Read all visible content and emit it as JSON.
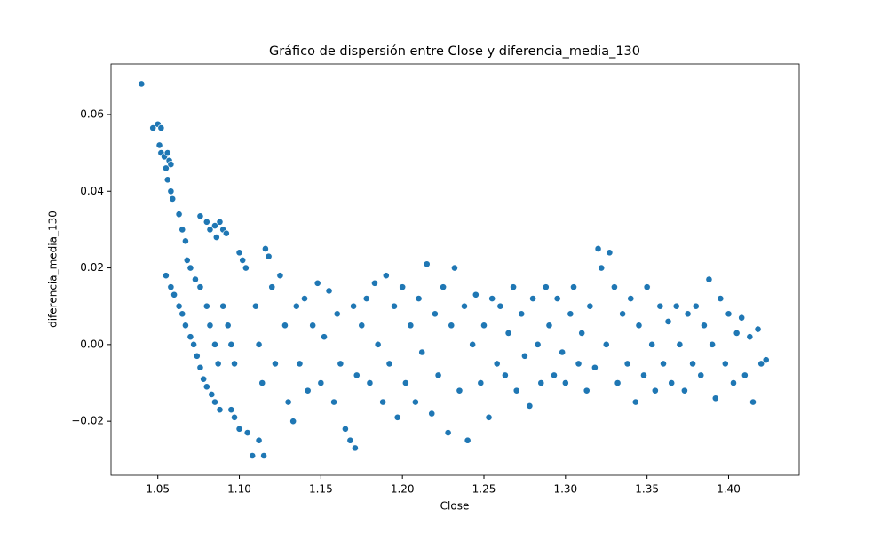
{
  "chart_data": {
    "type": "scatter",
    "title": "Gráfico de dispersión entre Close y diferencia_media_130",
    "x_label": "Close",
    "y_label": "diferencia_media_130",
    "color": "#1f77b4",
    "xlim": [
      1.0213,
      1.4433
    ],
    "ylim": [
      -0.0341,
      0.0732
    ],
    "xticks": [
      1.05,
      {
        "value": 1.1,
        "label": "1.10"
      },
      1.15,
      {
        "value": 1.2,
        "label": "1.20"
      },
      1.25,
      {
        "value": 1.3,
        "label": "1.30"
      },
      1.35,
      {
        "value": 1.4,
        "label": "1.40"
      }
    ],
    "yticks": [
      {
        "value": -0.02,
        "label": "−0.02"
      },
      {
        "value": 0,
        "label": "0.00"
      },
      {
        "value": 0.02,
        "label": "0.02"
      },
      {
        "value": 0.04,
        "label": "0.04"
      },
      {
        "value": 0.06,
        "label": "0.06"
      }
    ],
    "x": [
      1.04,
      1.047,
      1.05,
      1.052,
      1.051,
      1.052,
      1.054,
      1.055,
      1.056,
      1.057,
      1.058,
      1.056,
      1.058,
      1.059,
      1.063,
      1.065,
      1.067,
      1.055,
      1.058,
      1.06,
      1.063,
      1.065,
      1.067,
      1.07,
      1.072,
      1.074,
      1.076,
      1.078,
      1.08,
      1.083,
      1.085,
      1.088,
      1.068,
      1.07,
      1.073,
      1.076,
      1.08,
      1.082,
      1.085,
      1.087,
      1.076,
      1.08,
      1.082,
      1.085,
      1.088,
      1.09,
      1.092,
      1.086,
      1.09,
      1.093,
      1.095,
      1.097,
      1.095,
      1.097,
      1.1,
      1.102,
      1.104,
      1.1,
      1.105,
      1.108,
      1.112,
      1.115,
      1.116,
      1.118,
      1.11,
      1.112,
      1.114,
      1.12,
      1.122,
      1.125,
      1.128,
      1.13,
      1.133,
      1.135,
      1.137,
      1.14,
      1.142,
      1.145,
      1.148,
      1.15,
      1.152,
      1.155,
      1.158,
      1.16,
      1.162,
      1.165,
      1.168,
      1.171,
      1.17,
      1.172,
      1.175,
      1.178,
      1.18,
      1.183,
      1.185,
      1.188,
      1.19,
      1.192,
      1.195,
      1.197,
      1.2,
      1.202,
      1.205,
      1.208,
      1.21,
      1.212,
      1.215,
      1.218,
      1.22,
      1.222,
      1.225,
      1.228,
      1.23,
      1.232,
      1.235,
      1.238,
      1.24,
      1.243,
      1.245,
      1.248,
      1.25,
      1.253,
      1.255,
      1.258,
      1.26,
      1.263,
      1.265,
      1.268,
      1.27,
      1.273,
      1.275,
      1.278,
      1.28,
      1.283,
      1.285,
      1.288,
      1.29,
      1.293,
      1.295,
      1.298,
      1.3,
      1.303,
      1.305,
      1.308,
      1.31,
      1.313,
      1.315,
      1.318,
      1.32,
      1.322,
      1.325,
      1.327,
      1.33,
      1.332,
      1.335,
      1.338,
      1.34,
      1.343,
      1.345,
      1.348,
      1.35,
      1.353,
      1.355,
      1.358,
      1.36,
      1.363,
      1.365,
      1.368,
      1.37,
      1.373,
      1.375,
      1.378,
      1.38,
      1.383,
      1.385,
      1.388,
      1.39,
      1.392,
      1.395,
      1.398,
      1.4,
      1.403,
      1.405,
      1.408,
      1.41,
      1.413,
      1.415,
      1.418,
      1.42,
      1.423
    ],
    "values": [
      0.068,
      0.0565,
      0.0575,
      0.0565,
      0.052,
      0.05,
      0.049,
      0.046,
      0.05,
      0.048,
      0.047,
      0.043,
      0.04,
      0.038,
      0.034,
      0.03,
      0.027,
      0.018,
      0.015,
      0.013,
      0.01,
      0.008,
      0.005,
      0.002,
      0.0,
      -0.003,
      -0.006,
      -0.009,
      -0.011,
      -0.013,
      -0.015,
      -0.017,
      0.022,
      0.02,
      0.017,
      0.015,
      0.01,
      0.005,
      0.0,
      -0.005,
      0.0335,
      0.032,
      0.03,
      0.031,
      0.032,
      0.03,
      0.029,
      0.028,
      0.01,
      0.005,
      0.0,
      -0.005,
      -0.017,
      -0.019,
      0.024,
      0.022,
      0.02,
      -0.022,
      -0.023,
      -0.029,
      -0.025,
      -0.029,
      0.025,
      0.023,
      0.01,
      0.0,
      -0.01,
      0.015,
      -0.005,
      0.018,
      0.005,
      -0.015,
      -0.02,
      0.01,
      -0.005,
      0.012,
      -0.012,
      0.005,
      0.016,
      -0.01,
      0.002,
      0.014,
      -0.015,
      0.008,
      -0.005,
      -0.022,
      -0.025,
      -0.027,
      0.01,
      -0.008,
      0.005,
      0.012,
      -0.01,
      0.016,
      0.0,
      -0.015,
      0.018,
      -0.005,
      0.01,
      -0.019,
      0.015,
      -0.01,
      0.005,
      -0.015,
      0.012,
      -0.002,
      0.021,
      -0.018,
      0.008,
      -0.008,
      0.015,
      -0.023,
      0.005,
      0.02,
      -0.012,
      0.01,
      -0.025,
      0.0,
      0.013,
      -0.01,
      0.005,
      -0.019,
      0.012,
      -0.005,
      0.01,
      -0.008,
      0.003,
      0.015,
      -0.012,
      0.008,
      -0.003,
      -0.016,
      0.012,
      0.0,
      -0.01,
      0.015,
      0.005,
      -0.008,
      0.012,
      -0.002,
      -0.01,
      0.008,
      0.015,
      -0.005,
      0.003,
      -0.012,
      0.01,
      -0.006,
      0.025,
      0.02,
      0.0,
      0.024,
      0.015,
      -0.01,
      0.008,
      -0.005,
      0.012,
      -0.015,
      0.005,
      -0.008,
      0.015,
      0.0,
      -0.012,
      0.01,
      -0.005,
      0.006,
      -0.01,
      0.01,
      0.0,
      -0.012,
      0.008,
      -0.005,
      0.01,
      -0.008,
      0.005,
      0.017,
      0.0,
      -0.014,
      0.012,
      -0.005,
      0.008,
      -0.01,
      0.003,
      0.007,
      -0.008,
      0.002,
      -0.015,
      0.004,
      -0.005,
      -0.004
    ]
  }
}
